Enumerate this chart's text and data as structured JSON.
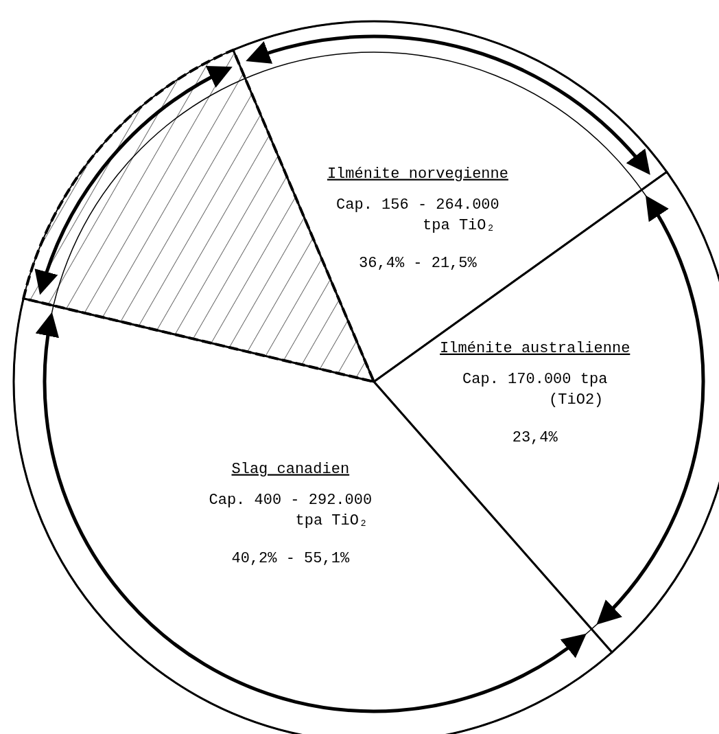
{
  "chart_data": {
    "type": "pie",
    "categories": [
      "Ilménite norvegienne",
      "Ilménite australienne",
      "Slag canadien",
      null
    ],
    "values": [
      21.5,
      23.4,
      40.2,
      14.9
    ],
    "colors": [
      "#ffffff",
      "#ffffff",
      "#ffffff",
      "#000000"
    ],
    "annotations": [
      "Cap. 156 - 264.000",
      "tpa TiO₂",
      "36,4% - 21,5%",
      "Cap. 170.000 tpa",
      "(TiO2)",
      "23,4%",
      "Cap. 400 - 292.000",
      "tpa TiO₂",
      "40,2% - 55,1%"
    ]
  }
}
